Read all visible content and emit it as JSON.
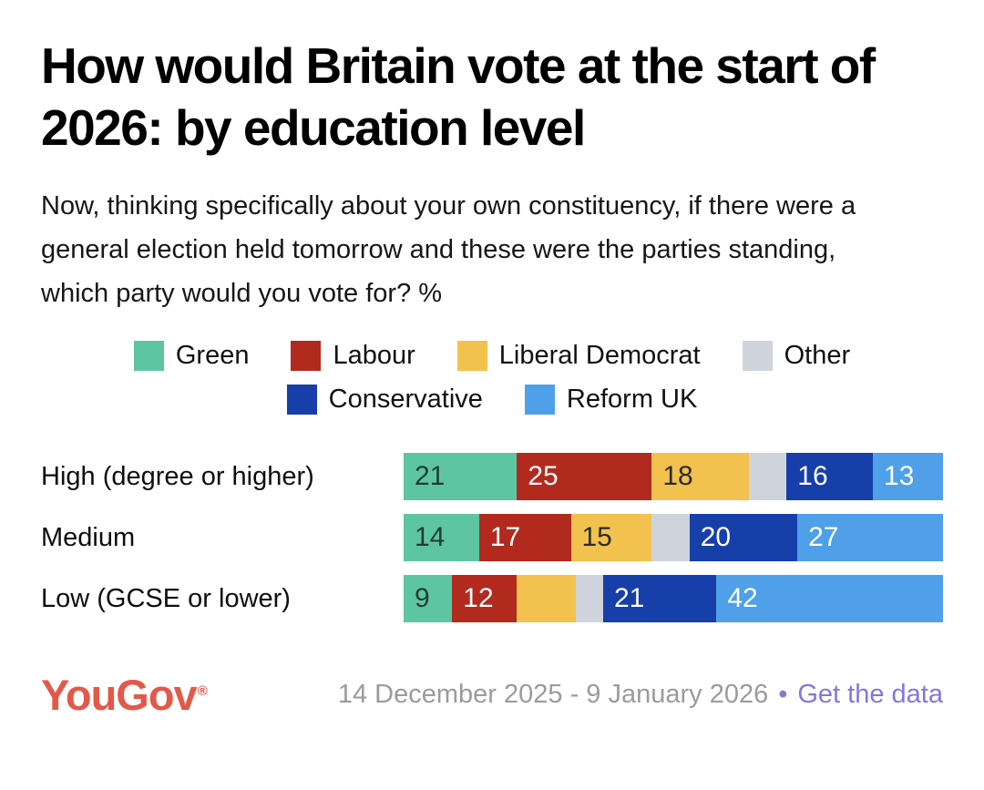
{
  "page": {
    "title": "How would Britain vote at the start of 2026: by education level",
    "subtitle": "Now, thinking specifically about your own constituency, if there were a general election held tomorrow and these were the parties standing, which party would you vote for? %"
  },
  "colors": {
    "green": "#5EC5A2",
    "labour": "#B22A1D",
    "liberal_democrat": "#F2C14E",
    "other": "#CFD4DC",
    "conservative": "#173FA9",
    "reform_uk": "#4FA0E8",
    "logo": "#E2594A",
    "date_text": "#9B9B9B",
    "link": "#8377DE"
  },
  "chart_data": {
    "type": "bar",
    "stacked": true,
    "orientation": "horizontal",
    "value_unit": "%",
    "x_max": 100,
    "legend_position": "top-center",
    "categories": [
      "High (degree or higher)",
      "Medium",
      "Low (GCSE or lower)"
    ],
    "series": [
      {
        "name": "Green",
        "color": "#5EC5A2",
        "label_color": "#1F3D35",
        "values": [
          21,
          14,
          9
        ],
        "labels": [
          "21",
          "14",
          "9"
        ]
      },
      {
        "name": "Labour",
        "color": "#B22A1D",
        "label_color": "#FFFFFF",
        "values": [
          25,
          17,
          12
        ],
        "labels": [
          "25",
          "17",
          "12"
        ]
      },
      {
        "name": "Liberal Democrat",
        "color": "#F2C14E",
        "label_color": "#2B2B2B",
        "values": [
          18,
          15,
          11
        ],
        "labels": [
          "18",
          "15",
          ""
        ]
      },
      {
        "name": "Other",
        "color": "#CFD4DC",
        "label_color": "#2B2B2B",
        "values": [
          7,
          7,
          5
        ],
        "labels": [
          "",
          "",
          ""
        ]
      },
      {
        "name": "Conservative",
        "color": "#173FA9",
        "label_color": "#FFFFFF",
        "values": [
          16,
          20,
          21
        ],
        "labels": [
          "16",
          "20",
          "21"
        ]
      },
      {
        "name": "Reform UK",
        "color": "#4FA0E8",
        "label_color": "#FFFFFF",
        "values": [
          13,
          27,
          42
        ],
        "labels": [
          "13",
          "27",
          "42"
        ]
      }
    ],
    "legend_rows": [
      [
        "Green",
        "Labour",
        "Liberal Democrat",
        "Other"
      ],
      [
        "Conservative",
        "Reform UK"
      ]
    ]
  },
  "footer": {
    "logo_text": "YouGov",
    "registered_mark": "®",
    "date_range": "14 December 2025 - 9 January 2026",
    "separator": "•",
    "link_label": "Get the data"
  }
}
